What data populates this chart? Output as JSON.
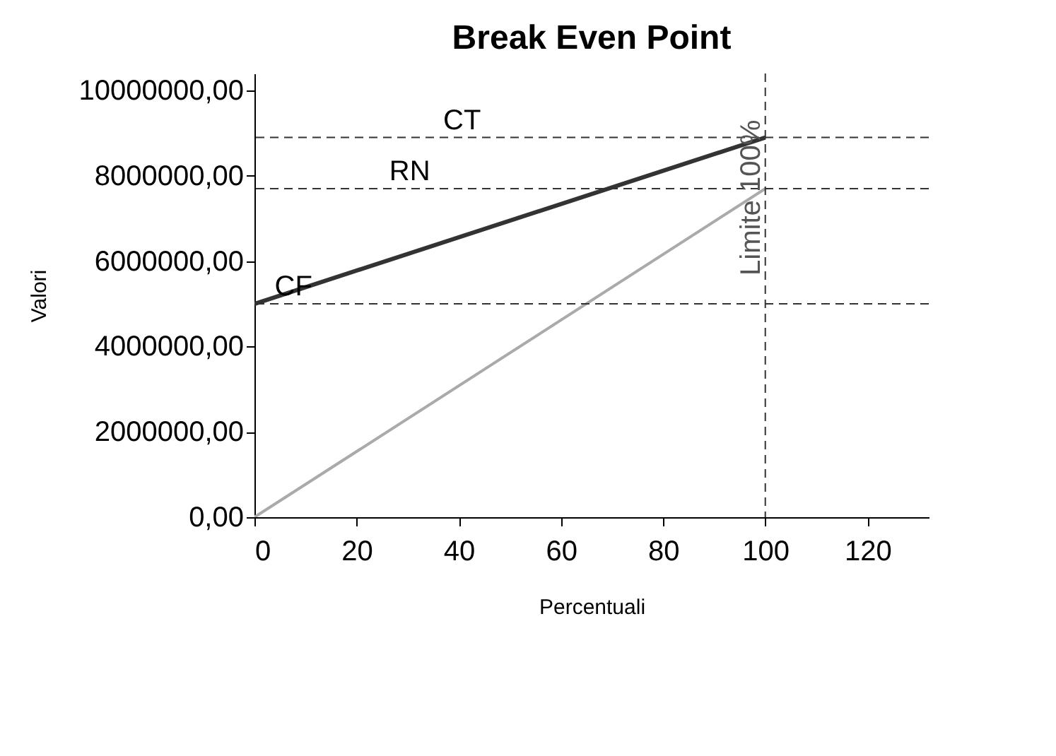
{
  "chart_data": {
    "type": "line",
    "title": "Break Even Point",
    "xlabel": "Percentuali",
    "ylabel": "Valori",
    "x": [
      0,
      100
    ],
    "series": [
      {
        "color": "#333333",
        "values": [
          5000000,
          8900000
        ]
      },
      {
        "color": "#aaaaaa",
        "values": [
          0,
          7700000
        ]
      }
    ],
    "xlim": [
      0,
      132
    ],
    "xticks": [
      0,
      20,
      40,
      60,
      80,
      100,
      120
    ],
    "ylim": [
      0,
      10400000
    ],
    "yticks": [
      {
        "value": 0,
        "label": "0,00"
      },
      {
        "value": 2000000,
        "label": "2000000,00"
      },
      {
        "value": 4000000,
        "label": "4000000,00"
      },
      {
        "value": 6000000,
        "label": "6000000,00"
      },
      {
        "value": 8000000,
        "label": "8000000,00"
      },
      {
        "value": 10000000,
        "label": "10000000,00"
      }
    ],
    "ref_lines": [
      {
        "axis": "y",
        "value": 8900000,
        "label": "CT",
        "line_style": "dashed",
        "color": "#333333"
      },
      {
        "axis": "y",
        "value": 7700000,
        "label": "RN",
        "line_style": "dashed",
        "color": "#333333"
      },
      {
        "axis": "y",
        "value": 5000000,
        "label": "CF",
        "line_style": "dashed",
        "color": "#333333"
      },
      {
        "axis": "x",
        "value": 100,
        "label": "Limite 100%",
        "line_style": "dashed",
        "color": "#333333"
      }
    ],
    "grid": false
  }
}
